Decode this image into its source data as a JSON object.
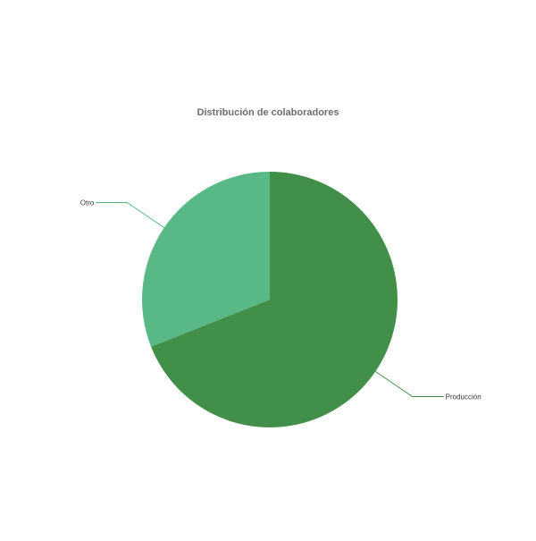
{
  "chart_data": {
    "type": "pie",
    "title": "Distribución de colaboradores",
    "labels": [
      "Producción",
      "Otro"
    ],
    "values": [
      69,
      31
    ],
    "colors": [
      "#428f4a",
      "#58b987"
    ],
    "label_color": "#3a3a3a",
    "start_angle_deg": 0,
    "direction": "clockwise",
    "legend": "none"
  }
}
